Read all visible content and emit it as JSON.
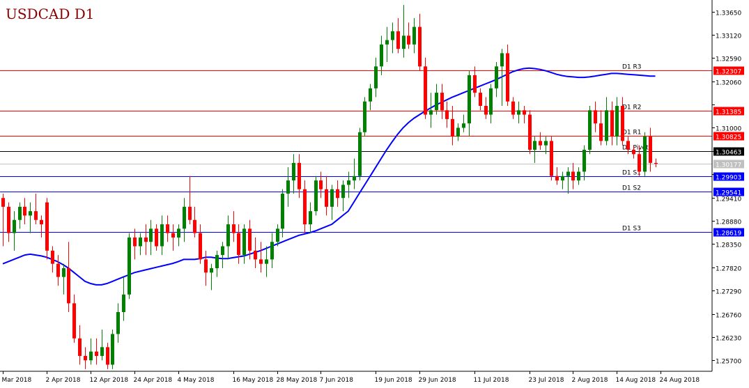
{
  "chart_data": {
    "type": "candlestick",
    "title": "USDCAD D1",
    "colors": {
      "background": "#ffffff",
      "bull": "#008000",
      "bear": "#ff0000",
      "moving_average": "#0000ff",
      "resistance": "#ff0000",
      "support": "#0000ff",
      "pivot": "#000000",
      "current_price": "#c0c0c0",
      "title": "#8b0000",
      "axis": "#000000"
    },
    "y_axis": {
      "min": 1.2545,
      "max": 1.3385,
      "ticks": [
        "1.33650",
        "1.33120",
        "1.32590",
        "1.32060",
        "1.31530",
        "1.31000",
        "1.30470",
        "1.29940",
        "1.29410",
        "1.28880",
        "1.28350",
        "1.27820",
        "1.27290",
        "1.26760",
        "1.26230",
        "1.25700"
      ]
    },
    "x_axis": {
      "labels": [
        "Mar 2018",
        "2 Apr 2018",
        "12 Apr 2018",
        "24 Apr 2018",
        "4 May 2018",
        "16 May 2018",
        "28 May 2018",
        "7 Jun 2018",
        "19 Jun 2018",
        "29 Jun 2018",
        "11 Jul 2018",
        "23 Jul 2018",
        "2 Aug 2018",
        "14 Aug 2018",
        "24 Aug 2018"
      ],
      "label_bar_index": [
        0,
        8,
        16,
        24,
        32,
        42,
        50,
        58,
        68,
        76,
        86,
        96,
        104,
        112,
        120
      ]
    },
    "levels": [
      {
        "name": "D1 R3",
        "value": 1.32307,
        "price_label": "1.32307",
        "kind": "resistance"
      },
      {
        "name": "D1 R2",
        "value": 1.31385,
        "price_label": "1.31385",
        "kind": "resistance"
      },
      {
        "name": "D1 R1",
        "value": 1.30825,
        "price_label": "1.30825",
        "kind": "resistance"
      },
      {
        "name": "D1 Pivot",
        "value": 1.30463,
        "price_label": "1.30463",
        "kind": "pivot"
      },
      {
        "name": "D1 S1",
        "value": 1.29903,
        "price_label": "1.29903",
        "kind": "support"
      },
      {
        "name": "D1 S2",
        "value": 1.29541,
        "price_label": "1.29541",
        "kind": "support"
      },
      {
        "name": "D1 S3",
        "value": 1.28619,
        "price_label": "1.28619",
        "kind": "support"
      }
    ],
    "current_price": {
      "value": 1.30177,
      "label": "1.30177"
    },
    "ohlc": [
      [
        1.294,
        1.295,
        1.283,
        1.292
      ],
      [
        1.292,
        1.293,
        1.284,
        1.286
      ],
      [
        1.286,
        1.291,
        1.282,
        1.289
      ],
      [
        1.289,
        1.293,
        1.287,
        1.292
      ],
      [
        1.292,
        1.294,
        1.288,
        1.29
      ],
      [
        1.29,
        1.293,
        1.286,
        1.291
      ],
      [
        1.291,
        1.295,
        1.288,
        1.289
      ],
      [
        1.289,
        1.29,
        1.285,
        1.288
      ],
      [
        1.293,
        1.294,
        1.28,
        1.282
      ],
      [
        1.282,
        1.283,
        1.277,
        1.279
      ],
      [
        1.279,
        1.281,
        1.274,
        1.276
      ],
      [
        1.276,
        1.279,
        1.272,
        1.278
      ],
      [
        1.278,
        1.284,
        1.268,
        1.27
      ],
      [
        1.27,
        1.272,
        1.261,
        1.262
      ],
      [
        1.262,
        1.265,
        1.256,
        1.258
      ],
      [
        1.258,
        1.26,
        1.255,
        1.257
      ],
      [
        1.257,
        1.262,
        1.256,
        1.259
      ],
      [
        1.259,
        1.262,
        1.256,
        1.258
      ],
      [
        1.258,
        1.264,
        1.257,
        1.26
      ],
      [
        1.26,
        1.261,
        1.255,
        1.256
      ],
      [
        1.256,
        1.264,
        1.255,
        1.263
      ],
      [
        1.263,
        1.27,
        1.261,
        1.268
      ],
      [
        1.268,
        1.276,
        1.266,
        1.272
      ],
      [
        1.272,
        1.286,
        1.271,
        1.285
      ],
      [
        1.285,
        1.287,
        1.28,
        1.283
      ],
      [
        1.283,
        1.286,
        1.281,
        1.285
      ],
      [
        1.285,
        1.288,
        1.281,
        1.284
      ],
      [
        1.284,
        1.289,
        1.281,
        1.287
      ],
      [
        1.287,
        1.288,
        1.282,
        1.283
      ],
      [
        1.283,
        1.29,
        1.281,
        1.288
      ],
      [
        1.288,
        1.29,
        1.284,
        1.286
      ],
      [
        1.286,
        1.288,
        1.282,
        1.285
      ],
      [
        1.285,
        1.288,
        1.283,
        1.287
      ],
      [
        1.287,
        1.294,
        1.284,
        1.292
      ],
      [
        1.292,
        1.299,
        1.288,
        1.289
      ],
      [
        1.289,
        1.292,
        1.285,
        1.286
      ],
      [
        1.286,
        1.288,
        1.279,
        1.28
      ],
      [
        1.28,
        1.282,
        1.274,
        1.277
      ],
      [
        1.277,
        1.279,
        1.273,
        1.278
      ],
      [
        1.278,
        1.282,
        1.276,
        1.281
      ],
      [
        1.281,
        1.284,
        1.278,
        1.283
      ],
      [
        1.283,
        1.29,
        1.28,
        1.288
      ],
      [
        1.288,
        1.291,
        1.284,
        1.286
      ],
      [
        1.286,
        1.288,
        1.279,
        1.281
      ],
      [
        1.281,
        1.288,
        1.279,
        1.287
      ],
      [
        1.287,
        1.289,
        1.28,
        1.282
      ],
      [
        1.282,
        1.285,
        1.278,
        1.28
      ],
      [
        1.28,
        1.284,
        1.277,
        1.279
      ],
      [
        1.279,
        1.283,
        1.276,
        1.28
      ],
      [
        1.28,
        1.286,
        1.278,
        1.284
      ],
      [
        1.284,
        1.288,
        1.283,
        1.287
      ],
      [
        1.287,
        1.296,
        1.285,
        1.295
      ],
      [
        1.295,
        1.301,
        1.292,
        1.298
      ],
      [
        1.298,
        1.304,
        1.295,
        1.302
      ],
      [
        1.302,
        1.304,
        1.294,
        1.296
      ],
      [
        1.296,
        1.298,
        1.286,
        1.288
      ],
      [
        1.288,
        1.293,
        1.286,
        1.291
      ],
      [
        1.291,
        1.299,
        1.29,
        1.298
      ],
      [
        1.298,
        1.3,
        1.294,
        1.296
      ],
      [
        1.296,
        1.299,
        1.29,
        1.292
      ],
      [
        1.292,
        1.297,
        1.289,
        1.296
      ],
      [
        1.296,
        1.298,
        1.292,
        1.294
      ],
      [
        1.294,
        1.298,
        1.291,
        1.297
      ],
      [
        1.297,
        1.3,
        1.294,
        1.298
      ],
      [
        1.298,
        1.303,
        1.296,
        1.299
      ],
      [
        1.299,
        1.31,
        1.298,
        1.309
      ],
      [
        1.309,
        1.317,
        1.308,
        1.316
      ],
      [
        1.316,
        1.32,
        1.314,
        1.319
      ],
      [
        1.319,
        1.326,
        1.317,
        1.324
      ],
      [
        1.324,
        1.331,
        1.322,
        1.329
      ],
      [
        1.329,
        1.333,
        1.325,
        1.33
      ],
      [
        1.33,
        1.334,
        1.327,
        1.332
      ],
      [
        1.332,
        1.335,
        1.327,
        1.328
      ],
      [
        1.328,
        1.338,
        1.326,
        1.331
      ],
      [
        1.331,
        1.334,
        1.328,
        1.329
      ],
      [
        1.329,
        1.335,
        1.327,
        1.333
      ],
      [
        1.333,
        1.336,
        1.323,
        1.324
      ],
      [
        1.324,
        1.326,
        1.312,
        1.313
      ],
      [
        1.313,
        1.318,
        1.31,
        1.314
      ],
      [
        1.314,
        1.32,
        1.313,
        1.318
      ],
      [
        1.318,
        1.32,
        1.312,
        1.314
      ],
      [
        1.314,
        1.316,
        1.31,
        1.312
      ],
      [
        1.312,
        1.315,
        1.306,
        1.308
      ],
      [
        1.308,
        1.311,
        1.307,
        1.31
      ],
      [
        1.31,
        1.313,
        1.309,
        1.311
      ],
      [
        1.311,
        1.323,
        1.308,
        1.322
      ],
      [
        1.322,
        1.324,
        1.317,
        1.318
      ],
      [
        1.318,
        1.319,
        1.314,
        1.315
      ],
      [
        1.315,
        1.317,
        1.312,
        1.313
      ],
      [
        1.313,
        1.32,
        1.311,
        1.319
      ],
      [
        1.319,
        1.325,
        1.317,
        1.324
      ],
      [
        1.324,
        1.328,
        1.315,
        1.327
      ],
      [
        1.327,
        1.329,
        1.315,
        1.316
      ],
      [
        1.316,
        1.317,
        1.312,
        1.313
      ],
      [
        1.313,
        1.316,
        1.311,
        1.314
      ],
      [
        1.314,
        1.315,
        1.311,
        1.313
      ],
      [
        1.313,
        1.314,
        1.304,
        1.305
      ],
      [
        1.305,
        1.308,
        1.302,
        1.307
      ],
      [
        1.307,
        1.309,
        1.305,
        1.306
      ],
      [
        1.306,
        1.308,
        1.304,
        1.307
      ],
      [
        1.307,
        1.308,
        1.298,
        1.299
      ],
      [
        1.299,
        1.301,
        1.297,
        1.298
      ],
      [
        1.298,
        1.3,
        1.296,
        1.299
      ],
      [
        1.299,
        1.301,
        1.295,
        1.3
      ],
      [
        1.3,
        1.302,
        1.296,
        1.298
      ],
      [
        1.298,
        1.301,
        1.297,
        1.3
      ],
      [
        1.3,
        1.306,
        1.298,
        1.305
      ],
      [
        1.305,
        1.315,
        1.304,
        1.314
      ],
      [
        1.314,
        1.316,
        1.309,
        1.311
      ],
      [
        1.311,
        1.314,
        1.306,
        1.307
      ],
      [
        1.307,
        1.317,
        1.306,
        1.314
      ],
      [
        1.314,
        1.316,
        1.306,
        1.308
      ],
      [
        1.308,
        1.317,
        1.306,
        1.315
      ],
      [
        1.315,
        1.317,
        1.306,
        1.307
      ],
      [
        1.307,
        1.308,
        1.304,
        1.305
      ],
      [
        1.305,
        1.306,
        1.303,
        1.304
      ],
      [
        1.304,
        1.306,
        1.299,
        1.3
      ],
      [
        1.3,
        1.309,
        1.299,
        1.308
      ],
      [
        1.308,
        1.31,
        1.3,
        1.302
      ],
      [
        1.302,
        1.303,
        1.301,
        1.3018
      ]
    ],
    "moving_average": [
      1.279,
      1.2795,
      1.28,
      1.2805,
      1.281,
      1.2812,
      1.281,
      1.2808,
      1.2805,
      1.28,
      1.2795,
      1.2788,
      1.278,
      1.277,
      1.276,
      1.275,
      1.2745,
      1.2742,
      1.2742,
      1.2745,
      1.275,
      1.2755,
      1.276,
      1.2765,
      1.277,
      1.2773,
      1.2776,
      1.2779,
      1.2782,
      1.2785,
      1.2788,
      1.2791,
      1.2795,
      1.28,
      1.28,
      1.28,
      1.2802,
      1.2805,
      1.2805,
      1.2803,
      1.2802,
      1.2802,
      1.2804,
      1.2806,
      1.2808,
      1.2812,
      1.2816,
      1.282,
      1.2825,
      1.283,
      1.2835,
      1.284,
      1.2845,
      1.285,
      1.2855,
      1.2858,
      1.2861,
      1.2865,
      1.287,
      1.2875,
      1.288,
      1.289,
      1.29,
      1.291,
      1.293,
      1.295,
      1.297,
      1.299,
      1.301,
      1.303,
      1.305,
      1.3068,
      1.3085,
      1.31,
      1.3112,
      1.3122,
      1.313,
      1.3138,
      1.3145,
      1.3152,
      1.3158,
      1.3164,
      1.317,
      1.3175,
      1.318,
      1.3185,
      1.319,
      1.3195,
      1.32,
      1.3205,
      1.321,
      1.3216,
      1.3222,
      1.3228,
      1.3232,
      1.3235,
      1.3236,
      1.3235,
      1.3233,
      1.323,
      1.3226,
      1.3222,
      1.3219,
      1.3217,
      1.3216,
      1.3215,
      1.3215,
      1.3216,
      1.3218,
      1.322,
      1.3222,
      1.3224,
      1.3224,
      1.3223,
      1.3222,
      1.3221,
      1.322,
      1.3219,
      1.3218,
      1.3218
    ]
  }
}
